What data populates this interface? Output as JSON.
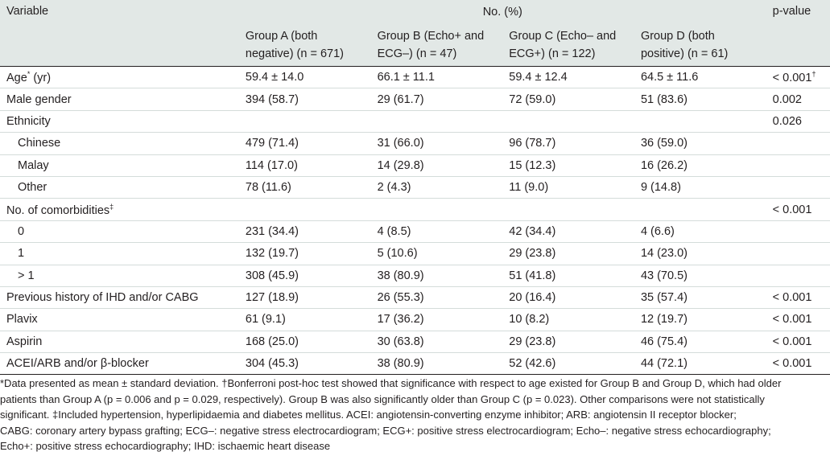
{
  "header": {
    "variable": "Variable",
    "no_pct": "No. (%)",
    "pvalue": "p-value",
    "groups": [
      [
        "Group A (both",
        "negative) (n = 671)"
      ],
      [
        "Group B (Echo+ and",
        "ECG–) (n = 47)"
      ],
      [
        "Group C (Echo– and",
        "ECG+) (n = 122)"
      ],
      [
        "Group D (both",
        "positive) (n = 61)"
      ]
    ]
  },
  "rows": [
    {
      "label": "Age",
      "label_sup": "*",
      "label_suffix": " (yr)",
      "type": "main",
      "values": [
        "59.4 ± 14.0",
        "66.1 ± 11.1",
        "59.4 ± 12.4",
        "64.5 ± 11.6"
      ],
      "p": "< 0.001",
      "p_sup": "†"
    },
    {
      "label": "Male gender",
      "type": "main",
      "values": [
        "394 (58.7)",
        "29 (61.7)",
        "72 (59.0)",
        "51 (83.6)"
      ],
      "p": "0.002"
    },
    {
      "label": "Ethnicity",
      "type": "main",
      "values": [
        "",
        "",
        "",
        ""
      ],
      "p": "0.026"
    },
    {
      "label": "Chinese",
      "type": "sub",
      "values": [
        "479 (71.4)",
        "31 (66.0)",
        "96 (78.7)",
        "36 (59.0)"
      ],
      "p": ""
    },
    {
      "label": "Malay",
      "type": "sub",
      "values": [
        "114 (17.0)",
        "14 (29.8)",
        "15 (12.3)",
        "16 (26.2)"
      ],
      "p": ""
    },
    {
      "label": "Other",
      "type": "sub",
      "values": [
        "78 (11.6)",
        "2 (4.3)",
        "11 (9.0)",
        "9 (14.8)"
      ],
      "p": ""
    },
    {
      "label": "No. of comorbidities",
      "label_sup": "‡",
      "type": "main",
      "values": [
        "",
        "",
        "",
        ""
      ],
      "p": "< 0.001"
    },
    {
      "label": "0",
      "type": "sub",
      "values": [
        "231 (34.4)",
        "4 (8.5)",
        "42 (34.4)",
        "4 (6.6)"
      ],
      "p": ""
    },
    {
      "label": "1",
      "type": "sub",
      "values": [
        "132 (19.7)",
        "5 (10.6)",
        "29 (23.8)",
        "14 (23.0)"
      ],
      "p": ""
    },
    {
      "label": "> 1",
      "type": "sub",
      "values": [
        "308 (45.9)",
        "38 (80.9)",
        "51 (41.8)",
        "43 (70.5)"
      ],
      "p": ""
    },
    {
      "label": "Previous history of IHD and/or CABG",
      "type": "main",
      "values": [
        "127 (18.9)",
        "26 (55.3)",
        "20 (16.4)",
        "35 (57.4)"
      ],
      "p": "< 0.001"
    },
    {
      "label": "Plavix",
      "type": "main",
      "values": [
        "61 (9.1)",
        "17 (36.2)",
        "10 (8.2)",
        "12 (19.7)"
      ],
      "p": "< 0.001"
    },
    {
      "label": "Aspirin",
      "type": "main",
      "values": [
        "168 (25.0)",
        "30 (63.8)",
        "29 (23.8)",
        "46 (75.4)"
      ],
      "p": "< 0.001"
    },
    {
      "label": "ACEI/ARB and/or β-blocker",
      "type": "main",
      "values": [
        "304 (45.3)",
        "38 (80.9)",
        "52 (42.6)",
        "44 (72.1)"
      ],
      "p": "< 0.001"
    }
  ],
  "footnote": [
    "*Data presented as mean ± standard deviation. †Bonferroni post-hoc test showed that significance with respect to age existed for Group B and Group D, which had older",
    "patients than Group A (p = 0.006 and p = 0.029, respectively). Group B was also significantly older than Group C (p = 0.023). Other comparisons were not statistically",
    "significant. ‡Included hypertension, hyperlipidaemia and diabetes mellitus. ACEI: angiotensin-converting enzyme inhibitor; ARB: angiotensin II receptor blocker;",
    "CABG: coronary artery bypass grafting; ECG–: negative stress electrocardiogram; ECG+: positive stress electrocardiogram; Echo–: negative stress echocardiography;",
    "Echo+: positive stress echocardiography; IHD: ischaemic heart disease"
  ]
}
